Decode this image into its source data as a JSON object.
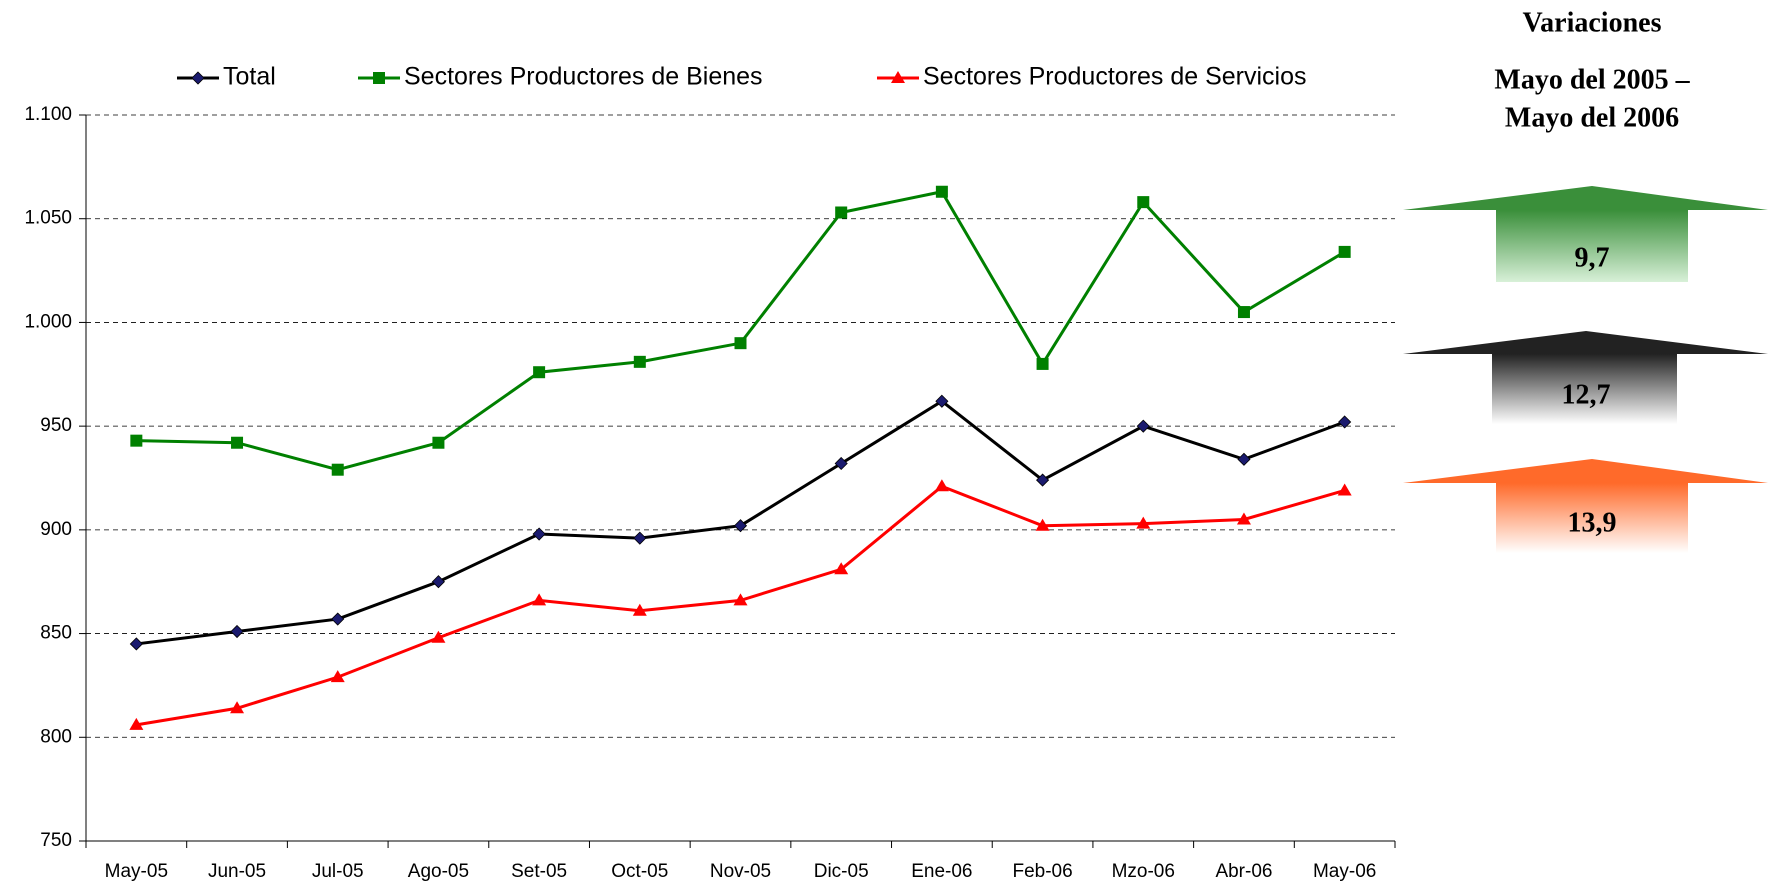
{
  "chart_data": {
    "type": "line",
    "categories": [
      "May-05",
      "Jun-05",
      "Jul-05",
      "Ago-05",
      "Set-05",
      "Oct-05",
      "Nov-05",
      "Dic-05",
      "Ene-06",
      "Feb-06",
      "Mzo-06",
      "Abr-06",
      "May-06"
    ],
    "series": [
      {
        "name": "Total",
        "color": "#000000",
        "marker": "diamond",
        "marker_color": "#1a1a6e",
        "values": [
          845,
          851,
          857,
          875,
          898,
          896,
          902,
          932,
          962,
          924,
          950,
          934,
          952
        ]
      },
      {
        "name": "Sectores Productores de Bienes",
        "color": "#008000",
        "marker": "square",
        "marker_color": "#008000",
        "values": [
          943,
          942,
          929,
          942,
          976,
          981,
          990,
          1053,
          1063,
          980,
          1058,
          1005,
          1034
        ]
      },
      {
        "name": "Sectores Productores de Servicios",
        "color": "#ff0000",
        "marker": "triangle",
        "marker_color": "#ff0000",
        "values": [
          806,
          814,
          829,
          848,
          866,
          861,
          866,
          881,
          921,
          902,
          903,
          905,
          919
        ]
      }
    ],
    "ylim": [
      750,
      1100
    ],
    "yticks": [
      750,
      800,
      850,
      900,
      950,
      {
        "value": 1000,
        "label": "1.000"
      },
      {
        "value": 1050,
        "label": "1.050"
      },
      {
        "value": 1100,
        "label": "1.100"
      }
    ],
    "grid": true,
    "legend": "top"
  },
  "panel": {
    "title": "Variaciones",
    "subtitle": [
      "Mayo del 2005 –",
      "Mayo del 2006"
    ],
    "arrows": [
      {
        "label": "9,7",
        "color": "green"
      },
      {
        "label": "12,7",
        "color": "black"
      },
      {
        "label": "13,9",
        "color": "orange"
      }
    ]
  }
}
